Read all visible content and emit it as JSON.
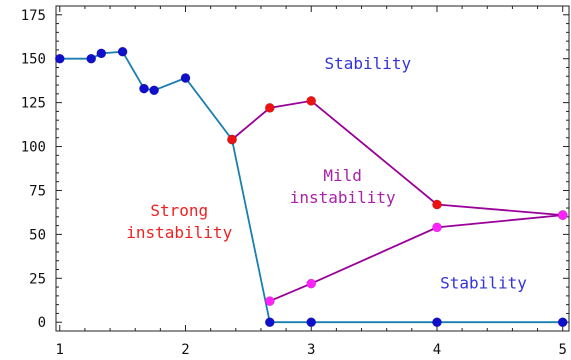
{
  "chart_data": {
    "type": "line",
    "title": "",
    "xlabel": "",
    "ylabel": "",
    "xlim": [
      0.97,
      5.05
    ],
    "ylim": [
      -5,
      180
    ],
    "x_ticks": [
      1,
      2,
      3,
      4,
      5
    ],
    "y_ticks": [
      0,
      25,
      50,
      75,
      100,
      125,
      150,
      175
    ],
    "grid": false,
    "series": [
      {
        "color": "#1a7fb0",
        "marker_color": "#1010cc",
        "points": [
          {
            "x": 1.0,
            "y": 150
          },
          {
            "x": 1.25,
            "y": 150
          },
          {
            "x": 1.33,
            "y": 153
          },
          {
            "x": 1.5,
            "y": 154
          },
          {
            "x": 1.67,
            "y": 133
          },
          {
            "x": 1.75,
            "y": 132
          },
          {
            "x": 2.0,
            "y": 139
          },
          {
            "x": 2.37,
            "y": 104
          },
          {
            "x": 2.67,
            "y": 0
          },
          {
            "x": 3.0,
            "y": 0
          },
          {
            "x": 4.0,
            "y": 0
          },
          {
            "x": 5.0,
            "y": 0
          }
        ]
      },
      {
        "color": "#990099",
        "marker_color": "#ee1111",
        "points": [
          {
            "x": 2.37,
            "y": 104
          },
          {
            "x": 2.67,
            "y": 122
          },
          {
            "x": 3.0,
            "y": 126
          },
          {
            "x": 4.0,
            "y": 67
          },
          {
            "x": 5.0,
            "y": 61
          }
        ]
      },
      {
        "color": "#990099",
        "marker_color": "#ff22ff",
        "points": [
          {
            "x": 2.67,
            "y": 12
          },
          {
            "x": 3.0,
            "y": 22
          },
          {
            "x": 4.0,
            "y": 54
          },
          {
            "x": 5.0,
            "y": 61
          }
        ]
      }
    ],
    "annotations": [
      {
        "lines": [
          "Stability"
        ],
        "x": 3.45,
        "y": 147,
        "color": "#3333dd"
      },
      {
        "lines": [
          "Mild",
          "instability"
        ],
        "x": 3.25,
        "y": 77,
        "color": "#aa22aa"
      },
      {
        "lines": [
          "Strong",
          "instability"
        ],
        "x": 1.95,
        "y": 57,
        "color": "#ee2222"
      },
      {
        "lines": [
          "Stability"
        ],
        "x": 4.37,
        "y": 22,
        "color": "#3333dd"
      }
    ]
  }
}
